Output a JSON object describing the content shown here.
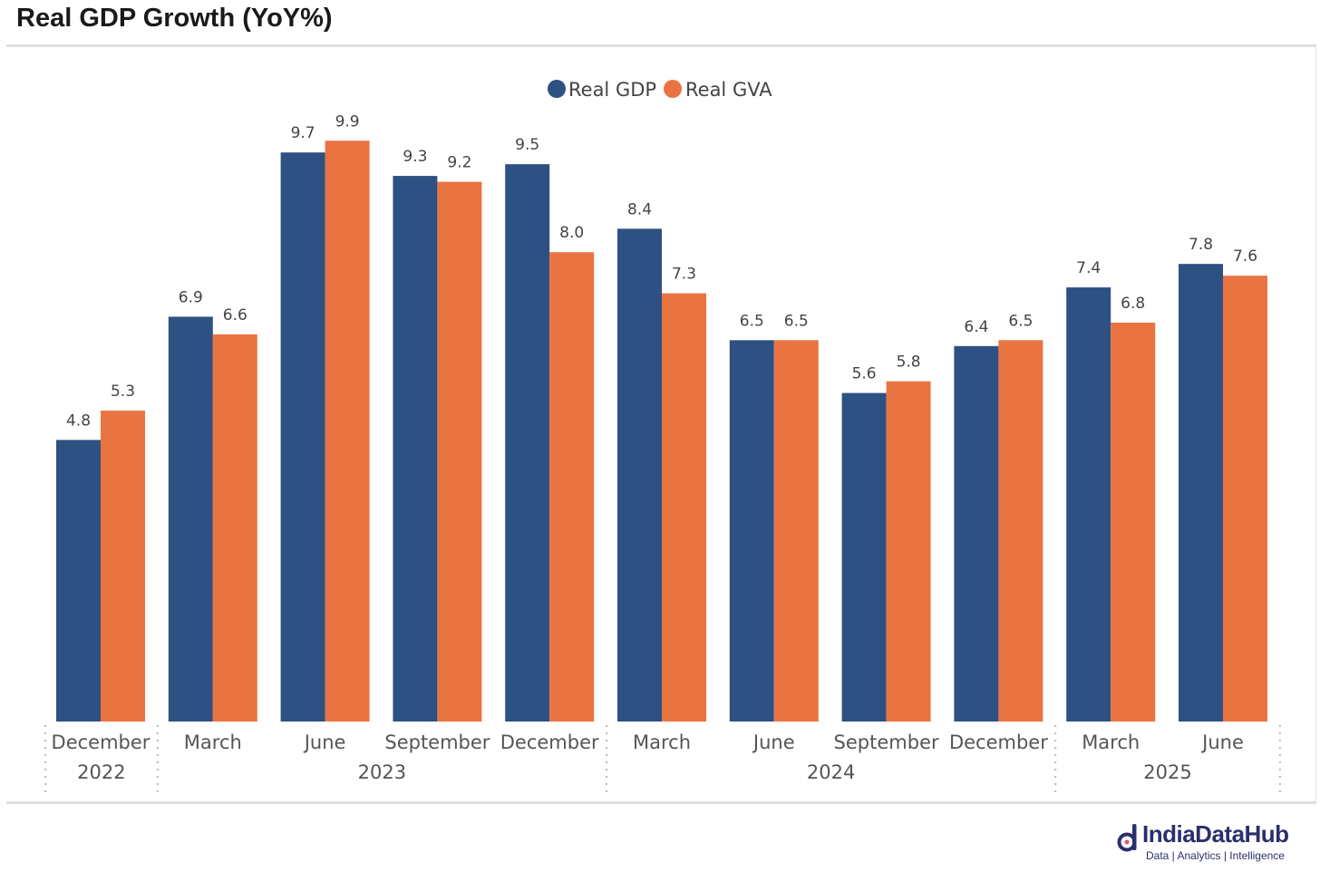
{
  "header": {
    "title": "Real GDP Growth (YoY%)"
  },
  "chart_data": {
    "type": "bar",
    "title": "Real GDP Growth (YoY%)",
    "xlabel": "",
    "ylabel": "",
    "ylim": [
      0,
      10.8
    ],
    "grid": false,
    "legend_position": "top-center",
    "categories": [
      "December",
      "March",
      "June",
      "September",
      "December",
      "March",
      "June",
      "September",
      "December",
      "March",
      "June"
    ],
    "year_groups": [
      {
        "label": "2022",
        "start": 0,
        "end": 0
      },
      {
        "label": "2023",
        "start": 1,
        "end": 4
      },
      {
        "label": "2024",
        "start": 5,
        "end": 8
      },
      {
        "label": "2025",
        "start": 9,
        "end": 10
      }
    ],
    "series": [
      {
        "name": "Real GDP",
        "color": "#2e5183",
        "values": [
          4.8,
          6.9,
          9.7,
          9.3,
          9.5,
          8.4,
          6.5,
          5.6,
          6.4,
          7.4,
          7.8
        ],
        "labels": [
          "4.8",
          "6.9",
          "9.7",
          "9.3",
          "9.5",
          "8.4",
          "6.5",
          "5.6",
          "6.4",
          "7.4",
          "7.8"
        ]
      },
      {
        "name": "Real GVA",
        "color": "#ea7441",
        "values": [
          5.3,
          6.6,
          9.9,
          9.2,
          8.0,
          7.3,
          6.5,
          5.8,
          6.5,
          6.8,
          7.6
        ],
        "labels": [
          "5.3",
          "6.6",
          "9.9",
          "9.2",
          "8.0",
          "7.3",
          "6.5",
          "5.8",
          "6.5",
          "6.8",
          "7.6"
        ]
      }
    ]
  },
  "branding": {
    "name": "IndiaDataHub",
    "tagline": "Data | Analytics | Intelligence",
    "color": "#2b2f6b"
  }
}
